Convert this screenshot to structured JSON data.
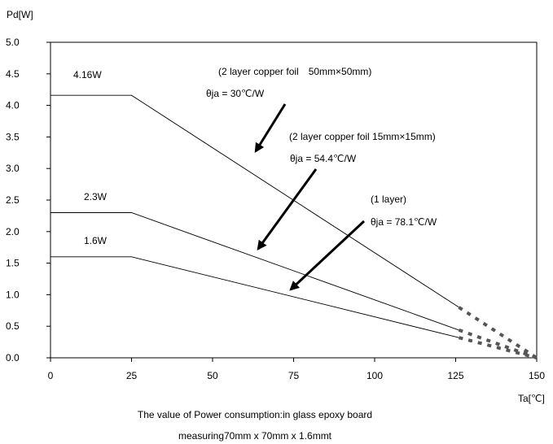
{
  "chart_data": {
    "type": "line",
    "title": "",
    "xlabel": "Ta[℃]",
    "ylabel": "Pd[W]",
    "xlim": [
      0,
      150
    ],
    "ylim": [
      0,
      5
    ],
    "x_ticks": [
      "0",
      "25",
      "50",
      "75",
      "100",
      "125",
      "150"
    ],
    "y_ticks": [
      "0.0",
      "0.5",
      "1.0",
      "1.5",
      "2.0",
      "2.5",
      "3.0",
      "3.5",
      "4.0",
      "4.5",
      "5.0"
    ],
    "grid": false,
    "series": [
      {
        "name": "4.16W",
        "solid": [
          [
            0,
            4.16
          ],
          [
            25,
            4.16
          ],
          [
            126,
            0.8
          ]
        ],
        "dashed": [
          [
            126,
            0.8
          ],
          [
            150,
            0
          ]
        ]
      },
      {
        "name": "2.3W",
        "solid": [
          [
            0,
            2.3
          ],
          [
            25,
            2.3
          ],
          [
            126,
            0.44
          ]
        ],
        "dashed": [
          [
            126,
            0.44
          ],
          [
            150,
            0
          ]
        ]
      },
      {
        "name": "1.6W",
        "solid": [
          [
            0,
            1.6
          ],
          [
            25,
            1.6
          ],
          [
            126,
            0.32
          ]
        ],
        "dashed": [
          [
            126,
            0.32
          ],
          [
            150,
            0
          ]
        ]
      }
    ],
    "annotations": [
      {
        "line1": "(2 layer copper foil　50mm×50mm)",
        "line2": "θja = 30℃/W"
      },
      {
        "line1": "(2 layer copper foil 15mm×15mm)",
        "line2": "θja = 54.4℃/W"
      },
      {
        "line1": "(1 layer)",
        "line2": "θja = 78.1℃/W"
      }
    ],
    "caption": [
      "The value of Power consumption:in glass epoxy board",
      "measuring70mm x 70mm x 1.6mmt"
    ]
  }
}
